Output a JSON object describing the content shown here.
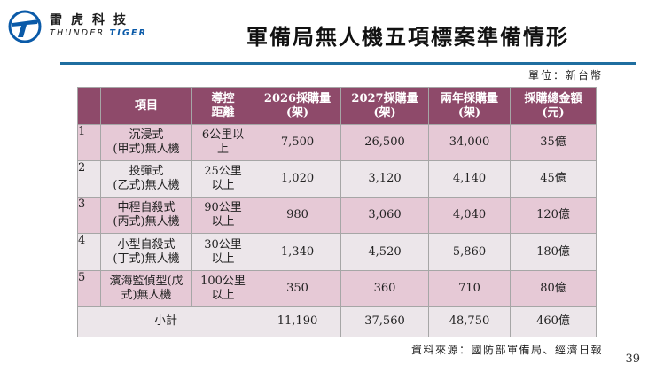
{
  "logo": {
    "cn": "雷虎科技",
    "en_light": "THUNDER ",
    "en_bold": "TIGER"
  },
  "title": "軍備局無人機五項標案準備情形",
  "unit": "單位：新台幣",
  "table": {
    "headers": [
      "",
      "項目",
      "導控\n距離",
      "2026採購量\n(架)",
      "2027採購量\n(架)",
      "兩年採購量\n(架)",
      "採購總金額\n(元)"
    ],
    "rows": [
      {
        "idx": "1",
        "item": "沉浸式\n(甲式)無人機",
        "range": "6公里以\n上",
        "y2026": "7,500",
        "y2027": "26,500",
        "total": "34,000",
        "amount": "35億"
      },
      {
        "idx": "2",
        "item": "投彈式\n(乙式)無人機",
        "range": "25公里\n以上",
        "y2026": "1,020",
        "y2027": "3,120",
        "total": "4,140",
        "amount": "45億"
      },
      {
        "idx": "3",
        "item": "中程自殺式\n(丙式)無人機",
        "range": "90公里\n以上",
        "y2026": "980",
        "y2027": "3,060",
        "total": "4,040",
        "amount": "120億"
      },
      {
        "idx": "4",
        "item": "小型自殺式\n(丁式)無人機",
        "range": "30公里\n以上",
        "y2026": "1,340",
        "y2027": "4,520",
        "total": "5,860",
        "amount": "180億"
      },
      {
        "idx": "5",
        "item": "濱海監偵型(戊\n式)無人機",
        "range": "100公里\n以上",
        "y2026": "350",
        "y2027": "360",
        "total": "710",
        "amount": "80億"
      }
    ],
    "subtotal": {
      "label": "小計",
      "y2026": "11,190",
      "y2027": "37,560",
      "total": "48,750",
      "amount": "460億"
    }
  },
  "source": "資料來源：國防部軍備局、經濟日報",
  "page_number": "39",
  "colors": {
    "header": "#8e4a6a",
    "row_odd": "#e6c9d6",
    "row_even": "#ece6ea",
    "rule": "#1f6ea0",
    "logo_blue": "#0a5aa8"
  }
}
